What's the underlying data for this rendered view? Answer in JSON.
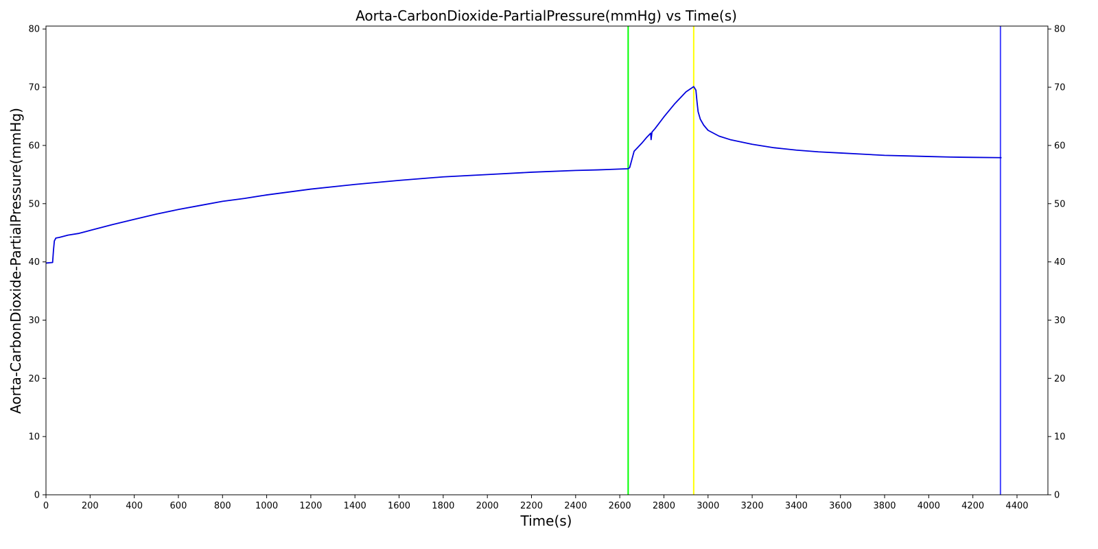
{
  "chart_data": {
    "type": "line",
    "title": "Aorta-CarbonDioxide-PartialPressure(mmHg) vs Time(s)",
    "xlabel": "Time(s)",
    "ylabel": "Aorta-CarbonDioxide-PartialPressure(mmHg)",
    "xlim": [
      0,
      4540
    ],
    "ylim": [
      0,
      80.5
    ],
    "x_ticks": [
      0,
      200,
      400,
      600,
      800,
      1000,
      1200,
      1400,
      1600,
      1800,
      2000,
      2200,
      2400,
      2600,
      2800,
      3000,
      3200,
      3400,
      3600,
      3800,
      4000,
      4200,
      4400
    ],
    "y_ticks": [
      0,
      10,
      20,
      30,
      40,
      50,
      60,
      70,
      80
    ],
    "grid": false,
    "legend": "none",
    "right_axis_ticks": true,
    "series": [
      {
        "color": "#0000dd",
        "x": [
          0,
          30,
          34,
          38,
          45,
          60,
          100,
          150,
          200,
          300,
          400,
          500,
          600,
          700,
          800,
          900,
          1000,
          1200,
          1400,
          1600,
          1800,
          2000,
          2200,
          2400,
          2500,
          2638,
          2645,
          2655,
          2665,
          2680,
          2700,
          2720,
          2740,
          2742,
          2746,
          2760,
          2800,
          2850,
          2900,
          2935,
          2945,
          2950,
          2955,
          2965,
          2980,
          3000,
          3050,
          3100,
          3200,
          3300,
          3400,
          3500,
          3600,
          3700,
          3800,
          3900,
          4000,
          4100,
          4200,
          4330
        ],
        "y": [
          39.8,
          39.9,
          42.0,
          43.6,
          44.1,
          44.2,
          44.6,
          44.9,
          45.4,
          46.4,
          47.3,
          48.2,
          49.0,
          49.7,
          50.4,
          50.9,
          51.5,
          52.5,
          53.3,
          54.0,
          54.6,
          55.0,
          55.4,
          55.7,
          55.8,
          56.0,
          56.2,
          57.6,
          59.0,
          59.6,
          60.4,
          61.3,
          62.1,
          61.0,
          62.3,
          62.9,
          64.9,
          67.2,
          69.2,
          70.1,
          69.5,
          67.5,
          65.8,
          64.5,
          63.5,
          62.6,
          61.6,
          61.0,
          60.2,
          59.6,
          59.2,
          58.9,
          58.7,
          58.5,
          58.3,
          58.2,
          58.1,
          58.0,
          57.95,
          57.9
        ]
      }
    ],
    "vlines": [
      {
        "x": 2638,
        "color": "#00ff00"
      },
      {
        "x": 2935,
        "color": "#ffff00"
      },
      {
        "x": 4325,
        "color": "#4444ff"
      }
    ]
  }
}
